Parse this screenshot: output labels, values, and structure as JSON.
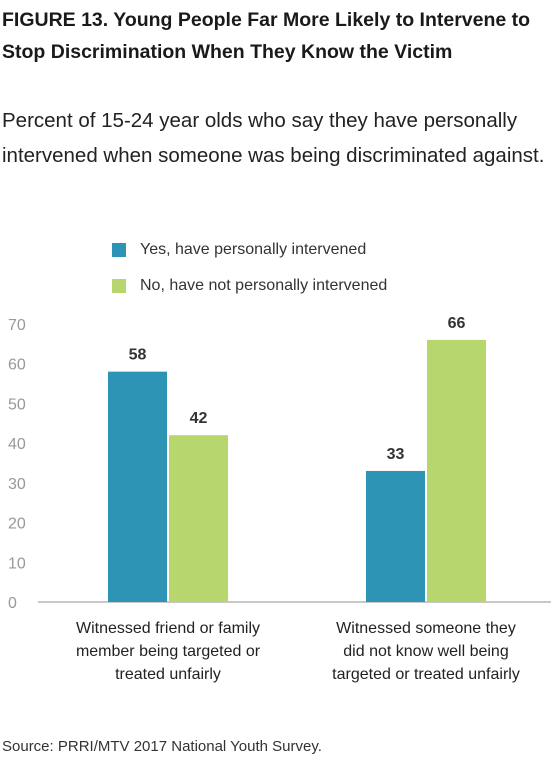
{
  "title": "FIGURE 13. Young People Far More Likely to Intervene to Stop Discrimination When They Know the Victim",
  "subtitle": "Percent of 15-24 year olds who say they have personally intervened when someone was being discriminated against.",
  "source": "Source: PRRI/MTV 2017 National Youth Survey.",
  "colors": {
    "yes": "#2e94b6",
    "no": "#b8d66e",
    "axis": "#b5b5b5"
  },
  "chart_data": {
    "type": "bar",
    "categories": [
      "Witnessed friend or family member being targeted or treated unfairly",
      "Witnessed someone they did not know well being targeted or treated unfairly"
    ],
    "series": [
      {
        "name": "Yes, have personally intervened",
        "values": [
          58,
          33
        ],
        "labels": [
          "58",
          "33"
        ]
      },
      {
        "name": "No, have not personally intervened",
        "values": [
          42,
          66
        ],
        "labels": [
          "42",
          "66"
        ]
      }
    ],
    "ylim": [
      0,
      70
    ],
    "yticks": [
      0,
      10,
      20,
      30,
      40,
      50,
      60,
      70
    ],
    "legend_position": "top",
    "grid": false,
    "xlabel": "",
    "ylabel": ""
  }
}
